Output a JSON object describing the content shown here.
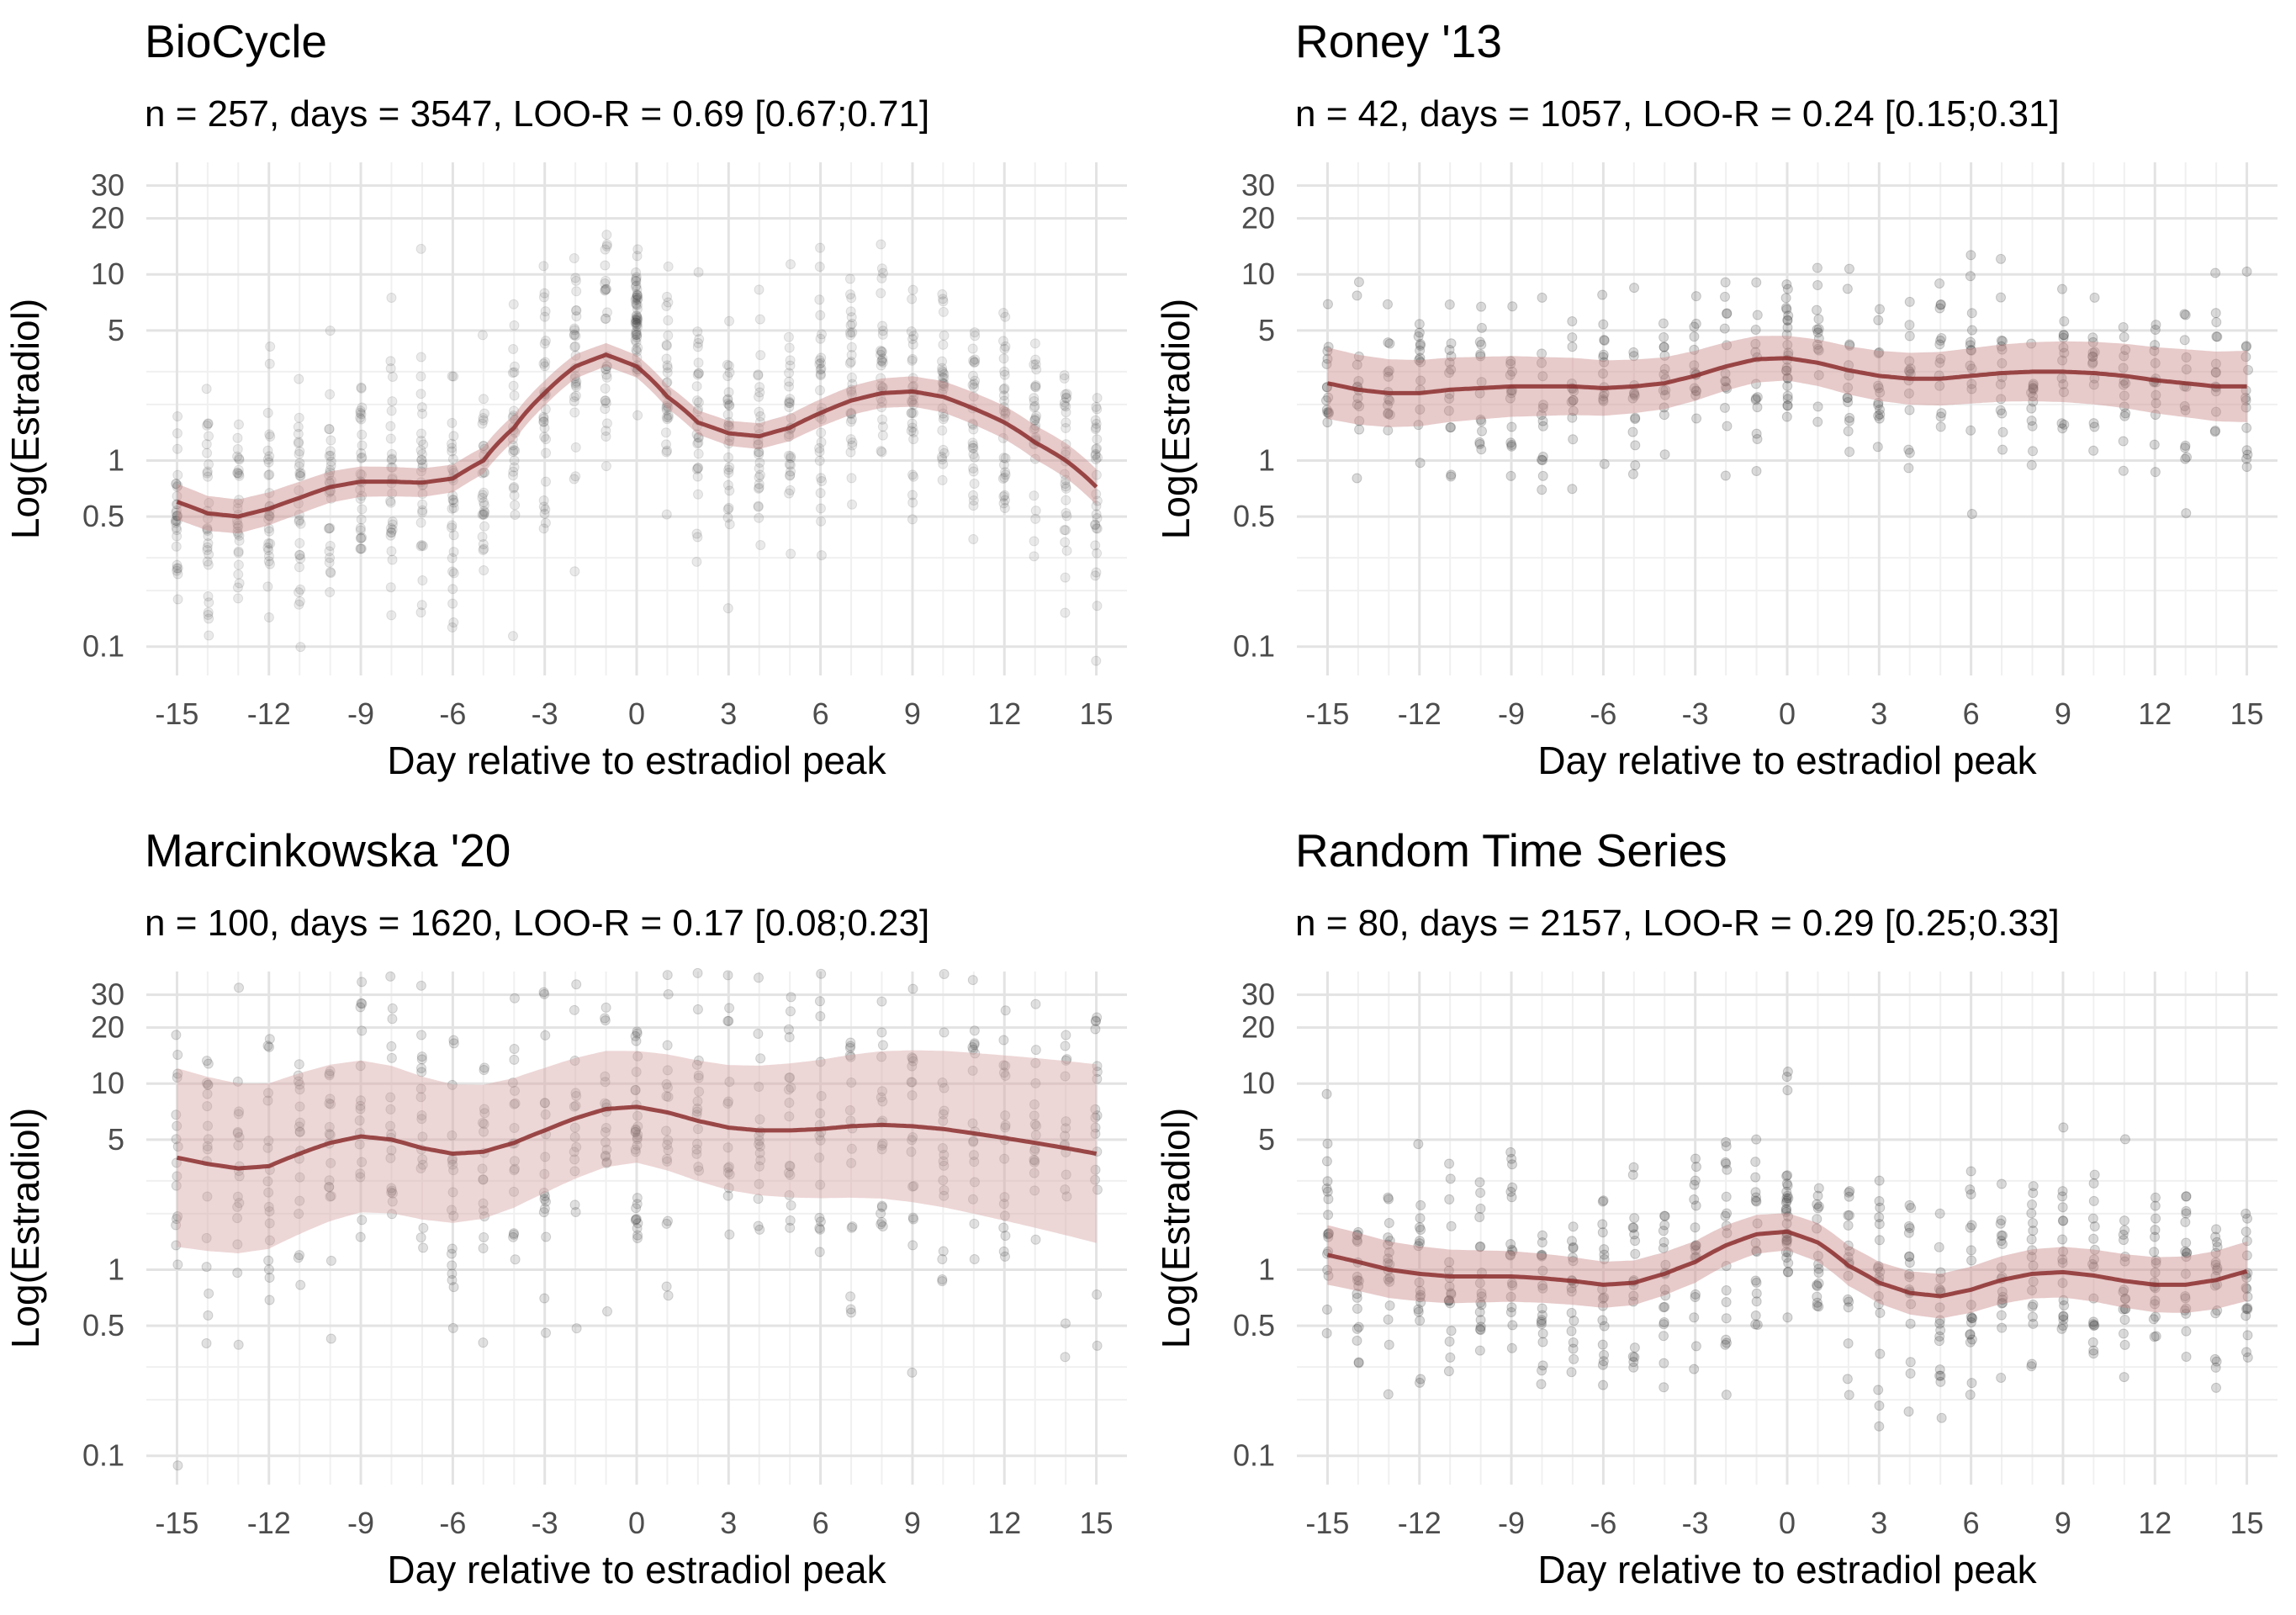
{
  "chart_data": [
    {
      "type": "scatter",
      "title": "BioCycle",
      "subtitle": "n = 257, days = 3547, LOO-R = 0.69 [0.67;0.71]",
      "xlabel": "Day relative to estradiol peak",
      "ylabel": "Log(Estradiol)",
      "x_scale": "linear",
      "y_scale": "log",
      "xlim": [
        -16,
        16
      ],
      "ylim": [
        0.07,
        40
      ],
      "x_ticks": [
        -15,
        -12,
        -9,
        -6,
        -3,
        0,
        3,
        6,
        9,
        12,
        15
      ],
      "x_tick_labels": [
        "-15",
        "-12",
        "-9",
        "-6",
        "-3",
        "0",
        "3",
        "6",
        "9",
        "12",
        "15"
      ],
      "y_ticks": [
        0.1,
        0.5,
        1,
        5,
        10,
        20,
        30
      ],
      "y_tick_labels": [
        "0.1",
        "0.5",
        "1",
        "5",
        "10",
        "20",
        "30"
      ],
      "grid": true,
      "legend": "none",
      "point_color": "#333333",
      "point_opacity": 0.1,
      "line_color": "#8b2e2e",
      "band_color": "#c98a8a",
      "band_width": 0.06,
      "spread": 0.6,
      "points_per_day": 30,
      "trend": {
        "x": [
          -15,
          -14,
          -13,
          -12,
          -11,
          -10,
          -9,
          -8,
          -7,
          -6,
          -5,
          -4,
          -3,
          -2,
          -1,
          0,
          1,
          2,
          3,
          4,
          5,
          6,
          7,
          8,
          9,
          10,
          11,
          12,
          13,
          14,
          15
        ],
        "y": [
          0.6,
          0.52,
          0.5,
          0.55,
          0.63,
          0.72,
          0.77,
          0.77,
          0.76,
          0.8,
          1.0,
          1.5,
          2.3,
          3.2,
          3.7,
          3.2,
          2.2,
          1.6,
          1.4,
          1.35,
          1.5,
          1.8,
          2.1,
          2.3,
          2.35,
          2.2,
          1.9,
          1.6,
          1.25,
          1.0,
          0.72
        ]
      }
    },
    {
      "type": "scatter",
      "title": "Roney '13",
      "subtitle": "n = 42, days = 1057, LOO-R = 0.24 [0.15;0.31]",
      "xlabel": "Day relative to estradiol peak",
      "ylabel": "Log(Estradiol)",
      "x_scale": "linear",
      "y_scale": "log",
      "xlim": [
        -16,
        16
      ],
      "ylim": [
        0.07,
        40
      ],
      "x_ticks": [
        -15,
        -12,
        -9,
        -6,
        -3,
        0,
        3,
        6,
        9,
        12,
        15
      ],
      "x_tick_labels": [
        "-15",
        "-12",
        "-9",
        "-6",
        "-3",
        "0",
        "3",
        "6",
        "9",
        "12",
        "15"
      ],
      "y_ticks": [
        0.1,
        0.5,
        1,
        5,
        10,
        20,
        30
      ],
      "y_tick_labels": [
        "0.1",
        "0.5",
        "1",
        "5",
        "10",
        "20",
        "30"
      ],
      "grid": true,
      "legend": "none",
      "point_color": "#333333",
      "point_opacity": 0.18,
      "line_color": "#8b2e2e",
      "band_color": "#c98a8a",
      "band_width": 0.12,
      "spread": 0.45,
      "points_per_day": 14,
      "trend": {
        "x": [
          -15,
          -14,
          -13,
          -12,
          -11,
          -10,
          -9,
          -8,
          -7,
          -6,
          -5,
          -4,
          -3,
          -2,
          -1,
          0,
          1,
          2,
          3,
          4,
          5,
          6,
          7,
          8,
          9,
          10,
          11,
          12,
          13,
          14,
          15
        ],
        "y": [
          2.6,
          2.4,
          2.3,
          2.3,
          2.4,
          2.45,
          2.5,
          2.5,
          2.5,
          2.45,
          2.5,
          2.6,
          2.85,
          3.2,
          3.5,
          3.55,
          3.35,
          3.05,
          2.85,
          2.75,
          2.75,
          2.85,
          2.95,
          3.0,
          3.0,
          2.95,
          2.85,
          2.7,
          2.6,
          2.5,
          2.5
        ]
      }
    },
    {
      "type": "scatter",
      "title": "Marcinkowska '20",
      "subtitle": "n = 100, days = 1620, LOO-R = 0.17 [0.08;0.23]",
      "xlabel": "Day relative to estradiol peak",
      "ylabel": "Log(Estradiol)",
      "x_scale": "linear",
      "y_scale": "log",
      "xlim": [
        -16,
        16
      ],
      "ylim": [
        0.07,
        40
      ],
      "x_ticks": [
        -15,
        -12,
        -9,
        -6,
        -3,
        0,
        3,
        6,
        9,
        12,
        15
      ],
      "x_tick_labels": [
        "-15",
        "-12",
        "-9",
        "-6",
        "-3",
        "0",
        "3",
        "6",
        "9",
        "12",
        "15"
      ],
      "y_ticks": [
        0.1,
        0.5,
        1,
        5,
        10,
        20,
        30
      ],
      "y_tick_labels": [
        "0.1",
        "0.5",
        "1",
        "5",
        "10",
        "20",
        "30"
      ],
      "grid": true,
      "legend": "none",
      "point_color": "#333333",
      "point_opacity": 0.15,
      "line_color": "#8b2e2e",
      "band_color": "#d7a3a3",
      "band_width": 0.3,
      "spread": 0.8,
      "points_per_day": 18,
      "trend": {
        "x": [
          -15,
          -14,
          -13,
          -12,
          -11,
          -10,
          -9,
          -8,
          -7,
          -6,
          -5,
          -4,
          -3,
          -2,
          -1,
          0,
          1,
          2,
          3,
          4,
          5,
          6,
          7,
          8,
          9,
          10,
          11,
          12,
          13,
          14,
          15
        ],
        "y": [
          4.0,
          3.7,
          3.5,
          3.6,
          4.2,
          4.8,
          5.2,
          5.0,
          4.5,
          4.2,
          4.3,
          4.8,
          5.6,
          6.5,
          7.3,
          7.5,
          7.0,
          6.3,
          5.8,
          5.6,
          5.6,
          5.7,
          5.9,
          6.0,
          5.9,
          5.7,
          5.4,
          5.1,
          4.8,
          4.5,
          4.2
        ]
      }
    },
    {
      "type": "scatter",
      "title": "Random Time Series",
      "subtitle": "n = 80, days = 2157, LOO-R = 0.29 [0.25;0.33]",
      "xlabel": "Day relative to estradiol peak",
      "ylabel": "Log(Estradiol)",
      "x_scale": "linear",
      "y_scale": "log",
      "xlim": [
        -16,
        16
      ],
      "ylim": [
        0.07,
        40
      ],
      "x_ticks": [
        -15,
        -12,
        -9,
        -6,
        -3,
        0,
        3,
        6,
        9,
        12,
        15
      ],
      "x_tick_labels": [
        "-15",
        "-12",
        "-9",
        "-6",
        "-3",
        "0",
        "3",
        "6",
        "9",
        "12",
        "15"
      ],
      "y_ticks": [
        0.1,
        0.5,
        1,
        5,
        10,
        20,
        30
      ],
      "y_tick_labels": [
        "0.1",
        "0.5",
        "1",
        "5",
        "10",
        "20",
        "30"
      ],
      "grid": true,
      "legend": "none",
      "point_color": "#333333",
      "point_opacity": 0.18,
      "line_color": "#8b2e2e",
      "band_color": "#c98a8a",
      "band_width": 0.1,
      "spread": 0.55,
      "points_per_day": 18,
      "trend": {
        "x": [
          -15,
          -14,
          -13,
          -12,
          -11,
          -10,
          -9,
          -8,
          -7,
          -6,
          -5,
          -4,
          -3,
          -2,
          -1,
          0,
          1,
          2,
          3,
          4,
          5,
          6,
          7,
          8,
          9,
          10,
          11,
          12,
          13,
          14,
          15
        ],
        "y": [
          1.2,
          1.1,
          1.0,
          0.95,
          0.92,
          0.92,
          0.92,
          0.9,
          0.87,
          0.83,
          0.85,
          0.95,
          1.1,
          1.35,
          1.55,
          1.6,
          1.4,
          1.05,
          0.85,
          0.75,
          0.72,
          0.78,
          0.88,
          0.95,
          0.97,
          0.93,
          0.87,
          0.83,
          0.83,
          0.88,
          0.98
        ]
      }
    }
  ]
}
